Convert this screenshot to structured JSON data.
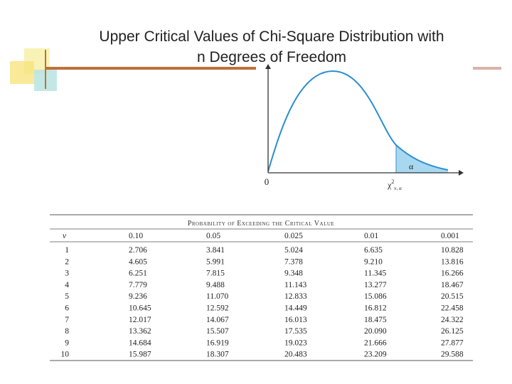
{
  "title": {
    "line1": "Upper Critical Values of Chi-Square Distribution with",
    "line2": "n Degrees of Freedom"
  },
  "figure": {
    "origin_label": "0",
    "area_label": "α",
    "critical_label": {
      "base": "χ",
      "sup": "2",
      "sub": "ν, α"
    }
  },
  "table": {
    "caption": "Probability of Exceeding the Critical Value",
    "columns": [
      "ν",
      "0.10",
      "0.05",
      "0.025",
      "0.01",
      "0.001"
    ],
    "rows": [
      [
        "1",
        "2.706",
        "3.841",
        "5.024",
        "6.635",
        "10.828"
      ],
      [
        "2",
        "4.605",
        "5.991",
        "7.378",
        "9.210",
        "13.816"
      ],
      [
        "3",
        "6.251",
        "7.815",
        "9.348",
        "11.345",
        "16.266"
      ],
      [
        "4",
        "7.779",
        "9.488",
        "11.143",
        "13.277",
        "18.467"
      ],
      [
        "5",
        "9.236",
        "11.070",
        "12.833",
        "15.086",
        "20.515"
      ],
      [
        "6",
        "10.645",
        "12.592",
        "14.449",
        "16.812",
        "22.458"
      ],
      [
        "7",
        "12.017",
        "14.067",
        "16.013",
        "18.475",
        "24.322"
      ],
      [
        "8",
        "13.362",
        "15.507",
        "17.535",
        "20.090",
        "26.125"
      ],
      [
        "9",
        "14.684",
        "16.919",
        "19.023",
        "21.666",
        "27.877"
      ],
      [
        "10",
        "15.987",
        "18.307",
        "20.483",
        "23.209",
        "29.588"
      ]
    ]
  }
}
